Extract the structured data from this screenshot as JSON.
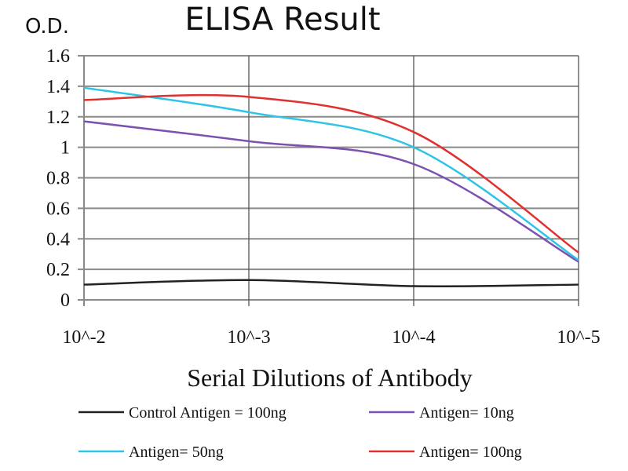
{
  "chart_data": {
    "type": "line",
    "title": "ELISA Result",
    "ylabel": "O.D.",
    "xlabel": "Serial Dilutions of Antibody",
    "categories": [
      "10^-2",
      "10^-3",
      "10^-4",
      "10^-5"
    ],
    "x_scale": "log",
    "ylim": [
      0,
      1.6
    ],
    "yticks": [
      "0",
      "0.2",
      "0.4",
      "0.6",
      "0.8",
      "1",
      "1.2",
      "1.4",
      "1.6"
    ],
    "grid": true,
    "legend_position": "bottom",
    "series": [
      {
        "name": "Control Antigen = 100ng",
        "color": "#222222",
        "values": [
          0.1,
          0.13,
          0.09,
          0.1
        ]
      },
      {
        "name": "Antigen= 10ng",
        "color": "#7b52b0",
        "values": [
          1.17,
          1.04,
          0.89,
          0.25
        ]
      },
      {
        "name": "Antigen= 50ng",
        "color": "#2ec4e6",
        "values": [
          1.39,
          1.23,
          1.0,
          0.26
        ]
      },
      {
        "name": "Antigen= 100ng",
        "color": "#e03030",
        "values": [
          1.31,
          1.33,
          1.1,
          0.31
        ]
      }
    ]
  }
}
